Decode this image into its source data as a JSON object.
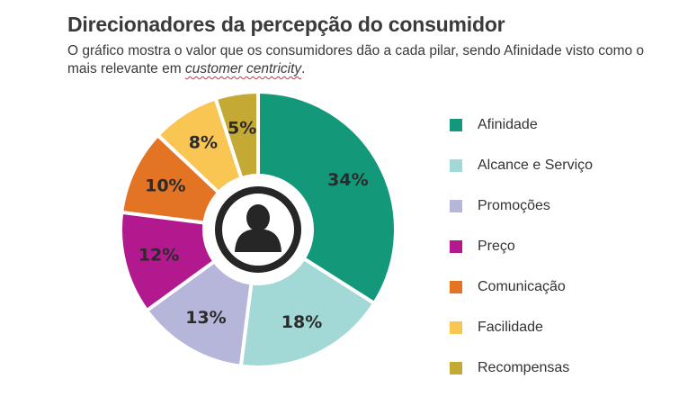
{
  "header": {
    "title": "Direcionadores da percepção do consumidor",
    "subtitle_lead": "O gráfico mostra o valor que os consumidores dão a cada pilar, sendo Afinidade visto como o mais relevante em ",
    "subtitle_emphasis": "customer centricity",
    "subtitle_end": "."
  },
  "chart_data": {
    "type": "pie",
    "variant": "donut",
    "categories": [
      "Afinidade",
      "Alcance e Serviço",
      "Promoções",
      "Preço",
      "Comunicação",
      "Facilidade",
      "Recompensas"
    ],
    "values": [
      34,
      18,
      13,
      12,
      10,
      8,
      5
    ],
    "data_labels": [
      "34%",
      "18%",
      "13%",
      "12%",
      "10%",
      "8%",
      "5%"
    ],
    "colors": [
      "#13997a",
      "#a2d8d6",
      "#b6b6db",
      "#b3198e",
      "#e27424",
      "#f9c553",
      "#c4aa35"
    ],
    "legend_position": "right",
    "center_icon": "person-icon"
  },
  "legend": {
    "items": [
      {
        "label": "Afinidade",
        "color": "#13997a"
      },
      {
        "label": "Alcance e Serviço",
        "color": "#a2d8d6"
      },
      {
        "label": "Promoções",
        "color": "#b6b6db"
      },
      {
        "label": "Preço",
        "color": "#b3198e"
      },
      {
        "label": "Comunicação",
        "color": "#e27424"
      },
      {
        "label": "Facilidade",
        "color": "#f9c553"
      },
      {
        "label": "Recompensas",
        "color": "#c4aa35"
      }
    ]
  }
}
